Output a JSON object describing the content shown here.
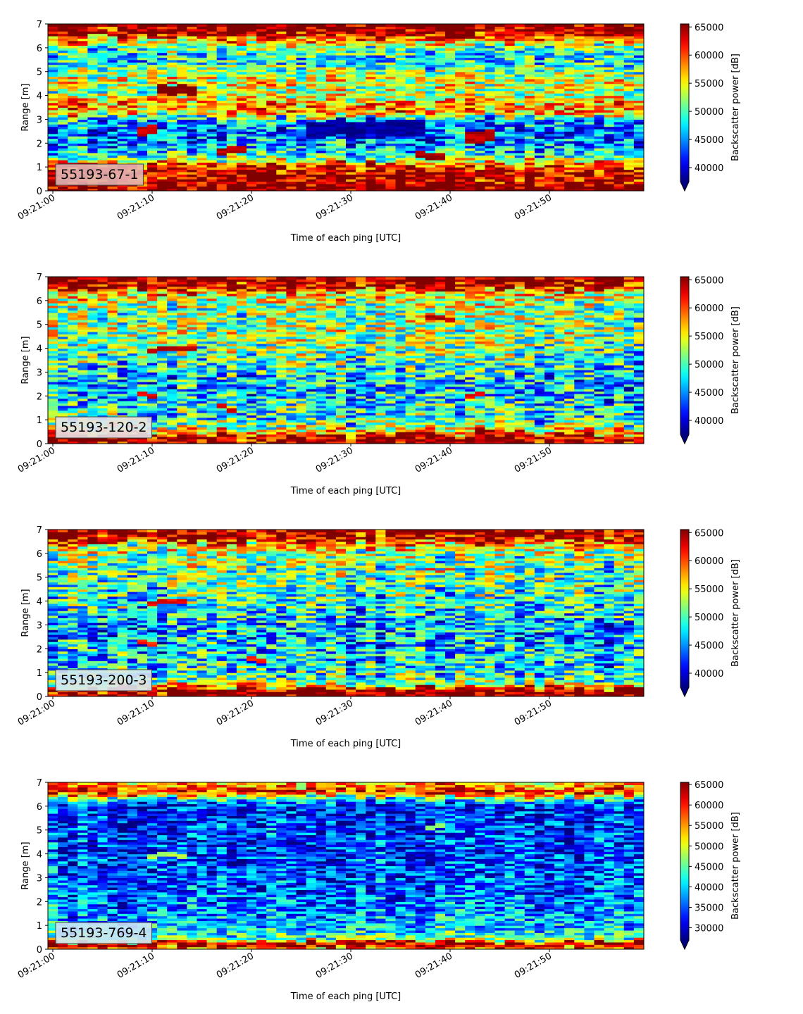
{
  "chart_data": [
    {
      "type": "heatmap",
      "label": "55193-67-1",
      "label_bg": "#e2b4b4",
      "xlabel": "Time of each ping [UTC]",
      "ylabel": "Range [m]",
      "x_range": [
        "09:21:00",
        "09:21:59"
      ],
      "x_ticks": [
        "09:21:00",
        "09:21:10",
        "09:21:20",
        "09:21:30",
        "09:21:40",
        "09:21:50"
      ],
      "ylim": [
        0,
        7
      ],
      "y_ticks": [
        0,
        1,
        2,
        3,
        4,
        5,
        6,
        7
      ],
      "colorbar_label": "Backscatter power [dB]",
      "colorbar_range": [
        37500,
        65535
      ],
      "colorbar_ticks": [
        40000,
        45000,
        50000,
        55000,
        60000,
        65000
      ],
      "colorbar_extend": "min",
      "colormap": "jet",
      "profile": [
        [
          0.05,
          1
        ],
        [
          0.15,
          1
        ],
        [
          0.3,
          0.97
        ],
        [
          0.6,
          0.93
        ],
        [
          0.95,
          0.9
        ],
        [
          1.15,
          0.76
        ],
        [
          1.4,
          0.45
        ],
        [
          1.8,
          0.3
        ],
        [
          2.4,
          0.22
        ],
        [
          3.0,
          0.33
        ],
        [
          3.3,
          0.72
        ],
        [
          3.7,
          0.72
        ],
        [
          4.1,
          0.52
        ],
        [
          4.6,
          0.6
        ],
        [
          5.0,
          0.5
        ],
        [
          5.5,
          0.35
        ],
        [
          6.0,
          0.45
        ],
        [
          6.4,
          0.78
        ],
        [
          6.65,
          0.95
        ],
        [
          7.0,
          1
        ]
      ],
      "noise": 0.3,
      "features": [
        {
          "t0": 8.5,
          "t1": 11,
          "r0": 2.3,
          "r1": 2.7,
          "v": 0.92
        },
        {
          "t0": 11,
          "t1": 15,
          "r0": 4.0,
          "r1": 4.4,
          "v": 1.0
        },
        {
          "t0": 16.5,
          "t1": 19.5,
          "r0": 1.65,
          "r1": 1.95,
          "v": 0.95
        },
        {
          "t0": 36.5,
          "t1": 39.5,
          "r0": 1.45,
          "r1": 1.75,
          "v": 0.97
        },
        {
          "t0": 42,
          "t1": 45,
          "r0": 2.0,
          "r1": 2.5,
          "v": 0.95
        },
        {
          "t0": 26,
          "t1": 38,
          "r0": 2.3,
          "r1": 3.0,
          "v": 0.03
        }
      ]
    },
    {
      "type": "heatmap",
      "label": "55193-120-2",
      "label_bg": "#e8e3e8",
      "xlabel": "Time of each ping [UTC]",
      "ylabel": "Range [m]",
      "x_range": [
        "09:21:00",
        "09:21:59"
      ],
      "x_ticks": [
        "09:21:00",
        "09:21:10",
        "09:21:20",
        "09:21:30",
        "09:21:40",
        "09:21:50"
      ],
      "ylim": [
        0,
        7
      ],
      "y_ticks": [
        0,
        1,
        2,
        3,
        4,
        5,
        6,
        7
      ],
      "colorbar_label": "Backscatter power [dB]",
      "colorbar_range": [
        37500,
        65535
      ],
      "colorbar_ticks": [
        40000,
        45000,
        50000,
        55000,
        60000,
        65000
      ],
      "colorbar_extend": "min",
      "colormap": "jet",
      "profile": [
        [
          0.05,
          1
        ],
        [
          0.2,
          1
        ],
        [
          0.35,
          0.95
        ],
        [
          0.5,
          0.72
        ],
        [
          0.7,
          0.55
        ],
        [
          1.0,
          0.42
        ],
        [
          1.6,
          0.36
        ],
        [
          2.2,
          0.3
        ],
        [
          2.8,
          0.32
        ],
        [
          3.3,
          0.4
        ],
        [
          4.0,
          0.48
        ],
        [
          4.8,
          0.52
        ],
        [
          5.5,
          0.5
        ],
        [
          6.0,
          0.55
        ],
        [
          6.4,
          0.68
        ],
        [
          6.6,
          0.95
        ],
        [
          7.0,
          1
        ]
      ],
      "noise": 0.34,
      "features": [
        {
          "t0": 10,
          "t1": 15,
          "r0": 3.9,
          "r1": 4.1,
          "v": 0.95
        },
        {
          "t0": 8.5,
          "t1": 10.5,
          "r0": 2.0,
          "r1": 2.2,
          "v": 0.9
        },
        {
          "t0": 17,
          "t1": 19,
          "r0": 1.45,
          "r1": 1.6,
          "v": 0.9
        },
        {
          "t0": 42,
          "t1": 44,
          "r0": 1.9,
          "r1": 2.1,
          "v": 0.9
        },
        {
          "t0": 38,
          "t1": 40.5,
          "r0": 5.2,
          "r1": 5.4,
          "v": 0.95
        }
      ]
    },
    {
      "type": "heatmap",
      "label": "55193-200-3",
      "label_bg": "#d8e8f0",
      "xlabel": "Time of each ping [UTC]",
      "ylabel": "Range [m]",
      "x_range": [
        "09:21:00",
        "09:21:59"
      ],
      "x_ticks": [
        "09:21:00",
        "09:21:10",
        "09:21:20",
        "09:21:30",
        "09:21:40",
        "09:21:50"
      ],
      "ylim": [
        0,
        7
      ],
      "y_ticks": [
        0,
        1,
        2,
        3,
        4,
        5,
        6,
        7
      ],
      "colorbar_label": "Backscatter power [dB]",
      "colorbar_range": [
        37500,
        65535
      ],
      "colorbar_ticks": [
        40000,
        45000,
        50000,
        55000,
        60000,
        65000
      ],
      "colorbar_extend": "min",
      "colormap": "jet",
      "profile": [
        [
          0.05,
          1
        ],
        [
          0.15,
          1
        ],
        [
          0.3,
          0.92
        ],
        [
          0.45,
          0.65
        ],
        [
          0.7,
          0.45
        ],
        [
          1.2,
          0.36
        ],
        [
          1.8,
          0.32
        ],
        [
          2.4,
          0.3
        ],
        [
          3.0,
          0.3
        ],
        [
          3.6,
          0.36
        ],
        [
          4.4,
          0.42
        ],
        [
          5.2,
          0.45
        ],
        [
          5.8,
          0.48
        ],
        [
          6.3,
          0.6
        ],
        [
          6.55,
          0.9
        ],
        [
          7.0,
          1
        ]
      ],
      "noise": 0.34,
      "features": [
        {
          "t0": 10,
          "t1": 14,
          "r0": 3.85,
          "r1": 4.05,
          "v": 0.88
        },
        {
          "t0": 8.5,
          "t1": 11,
          "r0": 2.1,
          "r1": 2.3,
          "v": 0.85
        },
        {
          "t0": 20,
          "t1": 22,
          "r0": 1.45,
          "r1": 1.6,
          "v": 0.85
        },
        {
          "t0": 38,
          "t1": 41,
          "r0": 5.2,
          "r1": 5.35,
          "v": 0.85
        }
      ]
    },
    {
      "type": "heatmap",
      "label": "55193-769-4",
      "label_bg": "#cfe6f2",
      "xlabel": "Time of each ping [UTC]",
      "ylabel": "Range [m]",
      "x_range": [
        "09:21:00",
        "09:21:59"
      ],
      "x_ticks": [
        "09:21:00",
        "09:21:10",
        "09:21:20",
        "09:21:30",
        "09:21:40",
        "09:21:50"
      ],
      "ylim": [
        0,
        7
      ],
      "y_ticks": [
        0,
        1,
        2,
        3,
        4,
        5,
        6,
        7
      ],
      "colorbar_label": "Backscatter power [dB]",
      "colorbar_range": [
        27000,
        65535
      ],
      "colorbar_ticks": [
        30000,
        35000,
        40000,
        45000,
        50000,
        55000,
        60000,
        65000
      ],
      "colorbar_extend": "min",
      "colormap": "jet",
      "profile": [
        [
          0.05,
          0.75
        ],
        [
          0.15,
          0.95
        ],
        [
          0.25,
          1
        ],
        [
          0.35,
          0.7
        ],
        [
          0.5,
          0.45
        ],
        [
          0.8,
          0.35
        ],
        [
          1.2,
          0.3
        ],
        [
          1.8,
          0.26
        ],
        [
          2.5,
          0.22
        ],
        [
          3.5,
          0.2
        ],
        [
          4.5,
          0.18
        ],
        [
          5.5,
          0.18
        ],
        [
          6.1,
          0.15
        ],
        [
          6.4,
          0.55
        ],
        [
          6.6,
          0.9
        ],
        [
          6.8,
          0.75
        ],
        [
          7.0,
          0.7
        ]
      ],
      "noise": 0.26,
      "features": [
        {
          "t0": 10,
          "t1": 14,
          "r0": 3.85,
          "r1": 4.05,
          "v": 0.55
        },
        {
          "t0": 38,
          "t1": 40,
          "r0": 5.1,
          "r1": 5.3,
          "v": 0.5
        }
      ]
    }
  ]
}
